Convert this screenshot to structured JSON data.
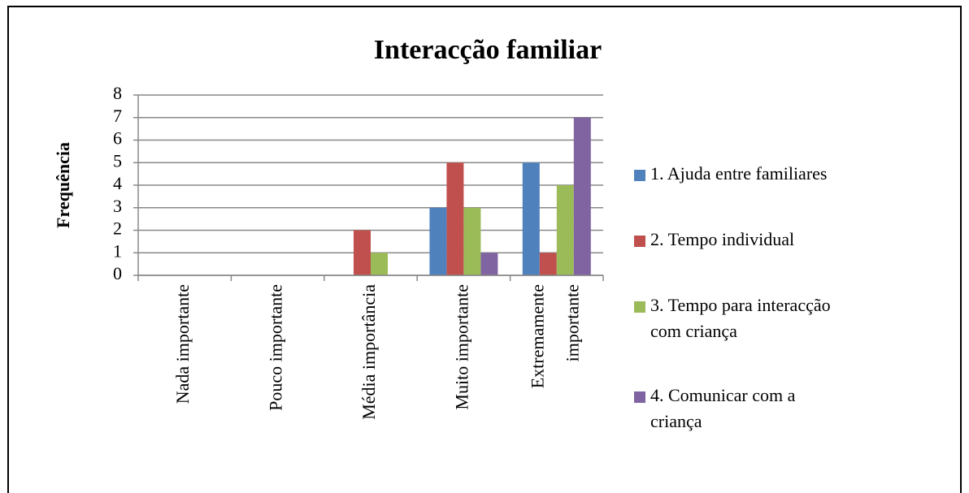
{
  "chart_data": {
    "type": "bar",
    "title": "Interacção familiar",
    "y_label": "Frequência",
    "categories": [
      "Nada importante",
      "Pouco importante",
      "Média importância",
      "Muito importante",
      "Extremamente importante"
    ],
    "series": [
      {
        "name": "1. Ajuda entre familiares",
        "color": "#4f81bd",
        "values": [
          0,
          0,
          0,
          3,
          5
        ]
      },
      {
        "name": "2. Tempo individual",
        "color": "#c0504d",
        "values": [
          0,
          0,
          2,
          5,
          1
        ]
      },
      {
        "name": "3. Tempo para interacção com criança",
        "color": "#9bbb59",
        "values": [
          0,
          0,
          1,
          3,
          4
        ]
      },
      {
        "name": "4. Comunicar com a criança",
        "color": "#8064a2",
        "values": [
          0,
          0,
          0,
          1,
          7
        ]
      }
    ],
    "ylim": [
      0,
      8
    ],
    "yticks": [
      0,
      1,
      2,
      3,
      4,
      5,
      6,
      7,
      8
    ],
    "grid": true,
    "legend": "right"
  }
}
